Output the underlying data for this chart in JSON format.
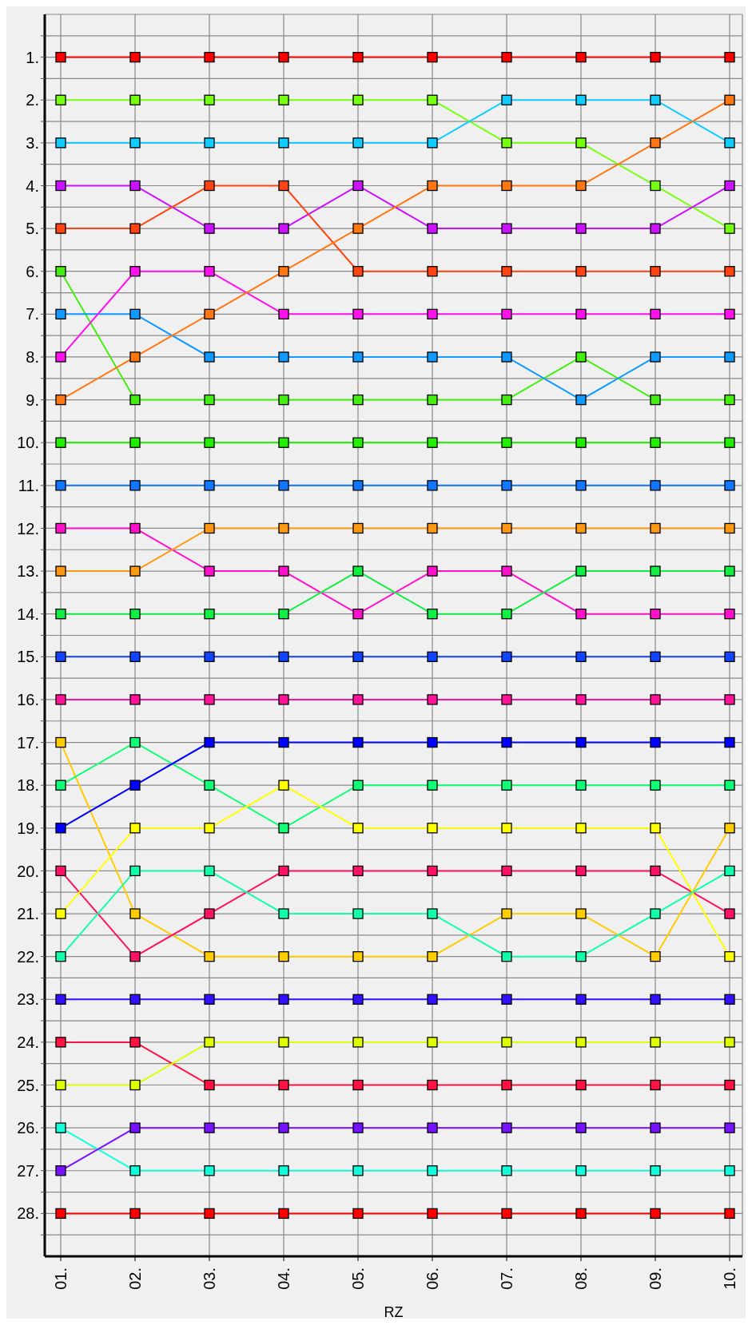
{
  "chart_data": {
    "type": "line",
    "xlabel": "RZ",
    "categories": [
      "01.",
      "02.",
      "03.",
      "04.",
      "05.",
      "06.",
      "07.",
      "08.",
      "09.",
      "10."
    ],
    "ylim": [
      29,
      0
    ],
    "yticks": [
      {
        "value": 0.5,
        "label": null
      },
      {
        "value": 1,
        "label": "1."
      },
      {
        "value": 1.5,
        "label": null
      },
      {
        "value": 2,
        "label": "2."
      },
      {
        "value": 2.5,
        "label": null
      },
      {
        "value": 3,
        "label": "3."
      },
      {
        "value": 3.5,
        "label": null
      },
      {
        "value": 4,
        "label": "4."
      },
      {
        "value": 4.5,
        "label": null
      },
      {
        "value": 5,
        "label": "5."
      },
      {
        "value": 5.5,
        "label": null
      },
      {
        "value": 6,
        "label": "6."
      },
      {
        "value": 6.5,
        "label": null
      },
      {
        "value": 7,
        "label": "7."
      },
      {
        "value": 7.5,
        "label": null
      },
      {
        "value": 8,
        "label": "8."
      },
      {
        "value": 8.5,
        "label": null
      },
      {
        "value": 9,
        "label": "9."
      },
      {
        "value": 9.5,
        "label": null
      },
      {
        "value": 10,
        "label": "10."
      },
      {
        "value": 10.5,
        "label": null
      },
      {
        "value": 11,
        "label": "11."
      },
      {
        "value": 11.5,
        "label": null
      },
      {
        "value": 12,
        "label": "12."
      },
      {
        "value": 12.5,
        "label": null
      },
      {
        "value": 13,
        "label": "13."
      },
      {
        "value": 13.5,
        "label": null
      },
      {
        "value": 14,
        "label": "14."
      },
      {
        "value": 14.5,
        "label": null
      },
      {
        "value": 15,
        "label": "15."
      },
      {
        "value": 15.5,
        "label": null
      },
      {
        "value": 16,
        "label": "16."
      },
      {
        "value": 16.5,
        "label": null
      },
      {
        "value": 17,
        "label": "17."
      },
      {
        "value": 17.5,
        "label": null
      },
      {
        "value": 18,
        "label": "18."
      },
      {
        "value": 18.5,
        "label": null
      },
      {
        "value": 19,
        "label": "19."
      },
      {
        "value": 19.5,
        "label": null
      },
      {
        "value": 20,
        "label": "20."
      },
      {
        "value": 20.5,
        "label": null
      },
      {
        "value": 21,
        "label": "21."
      },
      {
        "value": 21.5,
        "label": null
      },
      {
        "value": 22,
        "label": "22."
      },
      {
        "value": 22.5,
        "label": null
      },
      {
        "value": 23,
        "label": "23."
      },
      {
        "value": 23.5,
        "label": null
      },
      {
        "value": 24,
        "label": "24."
      },
      {
        "value": 24.5,
        "label": null
      },
      {
        "value": 25,
        "label": "25."
      },
      {
        "value": 25.5,
        "label": null
      },
      {
        "value": 26,
        "label": "26."
      },
      {
        "value": 26.5,
        "label": null
      },
      {
        "value": 27,
        "label": "27."
      },
      {
        "value": 27.5,
        "label": null
      },
      {
        "value": 28,
        "label": "28."
      },
      {
        "value": 28.5,
        "label": null
      }
    ],
    "grid": true,
    "marker": "square",
    "line_style": "solid",
    "series": [
      {
        "color": "#ff0000",
        "values": [
          1,
          1,
          1,
          1,
          1,
          1,
          1,
          1,
          1,
          1
        ]
      },
      {
        "color": "#77ff11",
        "values": [
          2,
          2,
          2,
          2,
          2,
          2,
          3,
          3,
          4,
          5
        ]
      },
      {
        "color": "#11ccff",
        "values": [
          3,
          3,
          3,
          3,
          3,
          3,
          2,
          2,
          2,
          3
        ]
      },
      {
        "color": "#cc11ff",
        "values": [
          4,
          4,
          5,
          5,
          4,
          5,
          5,
          5,
          5,
          4
        ]
      },
      {
        "color": "#ff4411",
        "values": [
          5,
          5,
          4,
          4,
          6,
          6,
          6,
          6,
          6,
          6
        ]
      },
      {
        "color": "#44ee11",
        "values": [
          6,
          9,
          9,
          9,
          9,
          9,
          9,
          8,
          9,
          9
        ]
      },
      {
        "color": "#1199ff",
        "values": [
          7,
          7,
          8,
          8,
          8,
          8,
          8,
          9,
          8,
          8
        ]
      },
      {
        "color": "#ff11ee",
        "values": [
          8,
          6,
          6,
          7,
          7,
          7,
          7,
          7,
          7,
          7
        ]
      },
      {
        "color": "#ff7711",
        "values": [
          9,
          8,
          7,
          6,
          5,
          4,
          4,
          4,
          3,
          2
        ]
      },
      {
        "color": "#22ee00",
        "values": [
          10,
          10,
          10,
          10,
          10,
          10,
          10,
          10,
          10,
          10
        ]
      },
      {
        "color": "#1177ff",
        "values": [
          11,
          11,
          11,
          11,
          11,
          11,
          11,
          11,
          11,
          11
        ]
      },
      {
        "color": "#ff11cc",
        "values": [
          12,
          12,
          13,
          13,
          14,
          13,
          13,
          14,
          14,
          14
        ]
      },
      {
        "color": "#ff9911",
        "values": [
          13,
          13,
          12,
          12,
          12,
          12,
          12,
          12,
          12,
          12
        ]
      },
      {
        "color": "#11ee44",
        "values": [
          14,
          14,
          14,
          14,
          13,
          14,
          14,
          13,
          13,
          13
        ]
      },
      {
        "color": "#1144ff",
        "values": [
          15,
          15,
          15,
          15,
          15,
          15,
          15,
          15,
          15,
          15
        ]
      },
      {
        "color": "#ff1199",
        "values": [
          16,
          16,
          16,
          16,
          16,
          16,
          16,
          16,
          16,
          16
        ]
      },
      {
        "color": "#ffcc00",
        "values": [
          17,
          21,
          22,
          22,
          22,
          22,
          21,
          21,
          22,
          19
        ]
      },
      {
        "color": "#11ff77",
        "values": [
          18,
          17,
          18,
          19,
          18,
          18,
          18,
          18,
          18,
          18
        ]
      },
      {
        "color": "#0000ff",
        "values": [
          19,
          18,
          17,
          17,
          17,
          17,
          17,
          17,
          17,
          17
        ]
      },
      {
        "color": "#ff1166",
        "values": [
          20,
          22,
          21,
          20,
          20,
          20,
          20,
          20,
          20,
          21
        ]
      },
      {
        "color": "#ffff00",
        "values": [
          21,
          19,
          19,
          18,
          19,
          19,
          19,
          19,
          19,
          22
        ]
      },
      {
        "color": "#11ffaa",
        "values": [
          22,
          20,
          20,
          21,
          21,
          21,
          22,
          22,
          21,
          20
        ]
      },
      {
        "color": "#3311ff",
        "values": [
          23,
          23,
          23,
          23,
          23,
          23,
          23,
          23,
          23,
          23
        ]
      },
      {
        "color": "#ff1144",
        "values": [
          24,
          24,
          25,
          25,
          25,
          25,
          25,
          25,
          25,
          25
        ]
      },
      {
        "color": "#ddff00",
        "values": [
          25,
          25,
          24,
          24,
          24,
          24,
          24,
          24,
          24,
          24
        ]
      },
      {
        "color": "#11ffdd",
        "values": [
          26,
          27,
          27,
          27,
          27,
          27,
          27,
          27,
          27,
          27
        ]
      },
      {
        "color": "#7711ff",
        "values": [
          27,
          26,
          26,
          26,
          26,
          26,
          26,
          26,
          26,
          26
        ]
      },
      {
        "color": "#ff0000",
        "values": [
          28,
          28,
          28,
          28,
          28,
          28,
          28,
          28,
          28,
          28
        ]
      }
    ]
  }
}
